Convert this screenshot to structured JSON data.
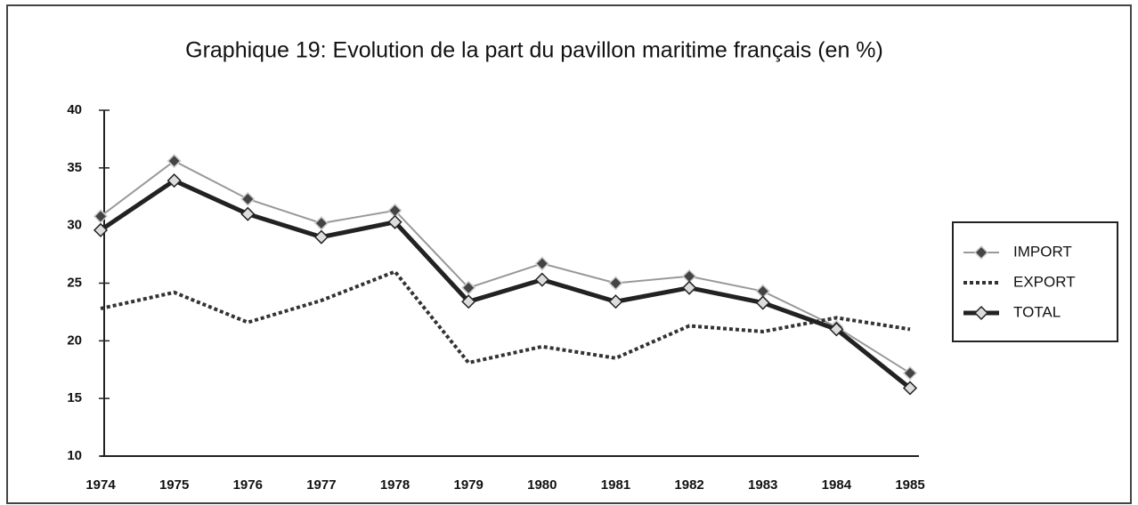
{
  "chart_data": {
    "type": "line",
    "title": "Graphique 19: Evolution de la part du pavillon maritime français (en %)",
    "categories": [
      "1974",
      "1975",
      "1976",
      "1977",
      "1978",
      "1979",
      "1980",
      "1981",
      "1982",
      "1983",
      "1984",
      "1985"
    ],
    "series": [
      {
        "name": "IMPORT",
        "color": "#999999",
        "values": [
          30.8,
          35.6,
          32.3,
          30.2,
          31.3,
          24.6,
          26.7,
          25.0,
          25.6,
          24.3,
          21.2,
          17.2
        ]
      },
      {
        "name": "EXPORT",
        "color": "#333333",
        "values": [
          22.8,
          24.2,
          21.6,
          23.5,
          26.0,
          18.1,
          19.5,
          18.5,
          21.3,
          20.8,
          22.0,
          21.0
        ]
      },
      {
        "name": "TOTAL",
        "color": "#222222",
        "values": [
          29.6,
          33.9,
          31.0,
          29.0,
          30.3,
          23.4,
          25.3,
          23.4,
          24.6,
          23.3,
          21.0,
          15.9
        ]
      }
    ],
    "ylim": [
      10,
      40
    ],
    "yticks": [
      10,
      15,
      20,
      25,
      30,
      35,
      40
    ],
    "legend": "right"
  }
}
